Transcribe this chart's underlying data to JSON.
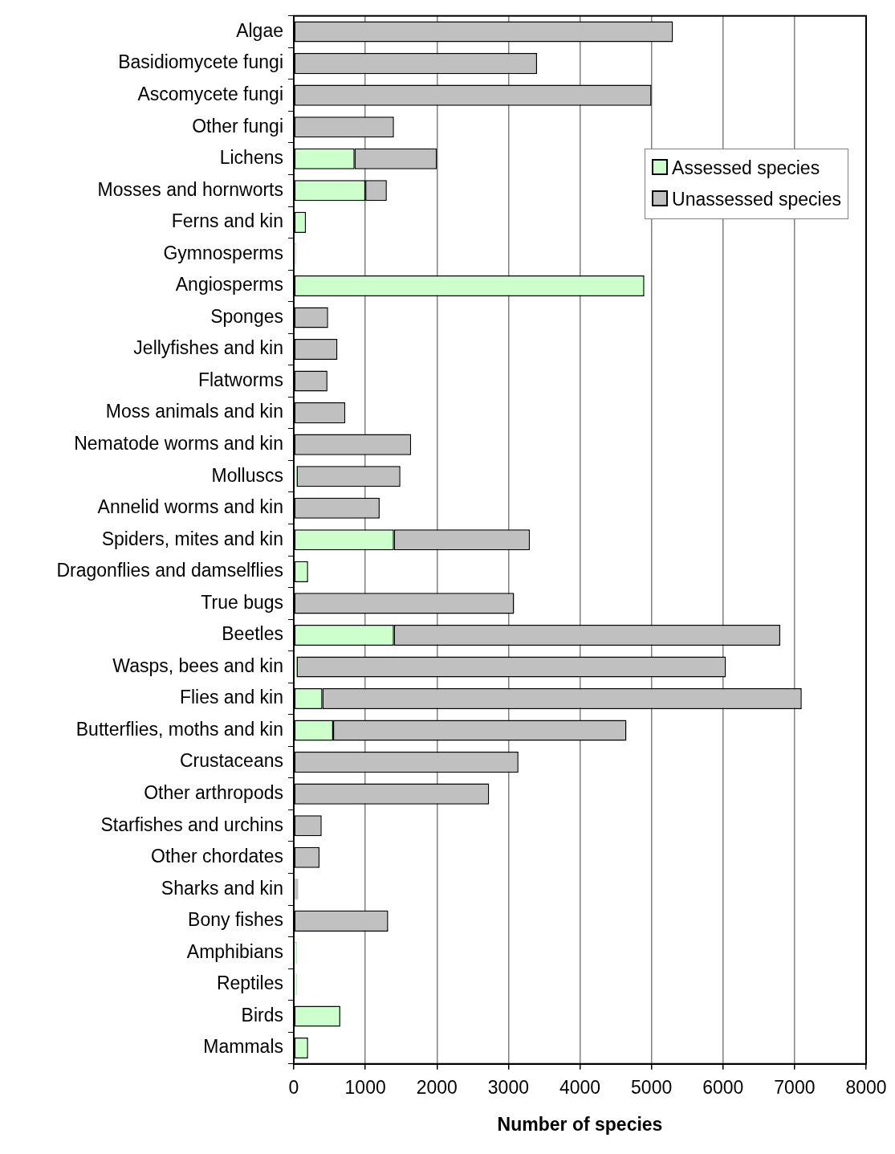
{
  "chart_data": {
    "type": "bar",
    "orientation": "horizontal",
    "stacked": true,
    "xlabel": "Number of species",
    "categories": [
      "Algae",
      "Basidiomycete fungi",
      "Ascomycete fungi",
      "Other fungi",
      "Lichens",
      "Mosses and hornworts",
      "Ferns and kin",
      "Gymnosperms",
      "Angiosperms",
      "Sponges",
      "Jellyfishes and kin",
      "Flatworms",
      "Moss animals and kin",
      "Nematode worms and kin",
      "Molluscs",
      "Annelid worms and kin",
      "Spiders, mites and kin",
      "Dragonflies and damselflies",
      "True bugs",
      "Beetles",
      "Wasps, bees and kin",
      "Flies and kin",
      "Butterflies, moths and kin",
      "Crustaceans",
      "Other arthropods",
      "Starfishes and urchins",
      "Other chordates",
      "Sharks and kin",
      "Bony fishes",
      "Amphibians",
      "Reptiles",
      "Birds",
      "Mammals"
    ],
    "series": [
      {
        "name": "Assessed species",
        "color": "#ccffcc",
        "values": [
          0,
          0,
          0,
          0,
          850,
          1000,
          170,
          30,
          4900,
          0,
          0,
          0,
          0,
          0,
          40,
          0,
          1400,
          200,
          0,
          1400,
          40,
          400,
          550,
          0,
          0,
          0,
          0,
          0,
          0,
          40,
          40,
          650,
          200
        ]
      },
      {
        "name": "Unassessed species",
        "color": "#c0c0c0",
        "values": [
          5300,
          3400,
          5000,
          1400,
          1150,
          300,
          0,
          0,
          0,
          480,
          610,
          470,
          720,
          1640,
          1450,
          1200,
          1900,
          0,
          3080,
          5400,
          6000,
          6700,
          4100,
          3140,
          2730,
          390,
          360,
          60,
          1320,
          0,
          0,
          0,
          0
        ]
      }
    ],
    "xlim": [
      0,
      8000
    ],
    "xticks": [
      0,
      1000,
      2000,
      3000,
      4000,
      5000,
      6000,
      7000,
      8000
    ],
    "grid": "x",
    "legend": "top right"
  }
}
